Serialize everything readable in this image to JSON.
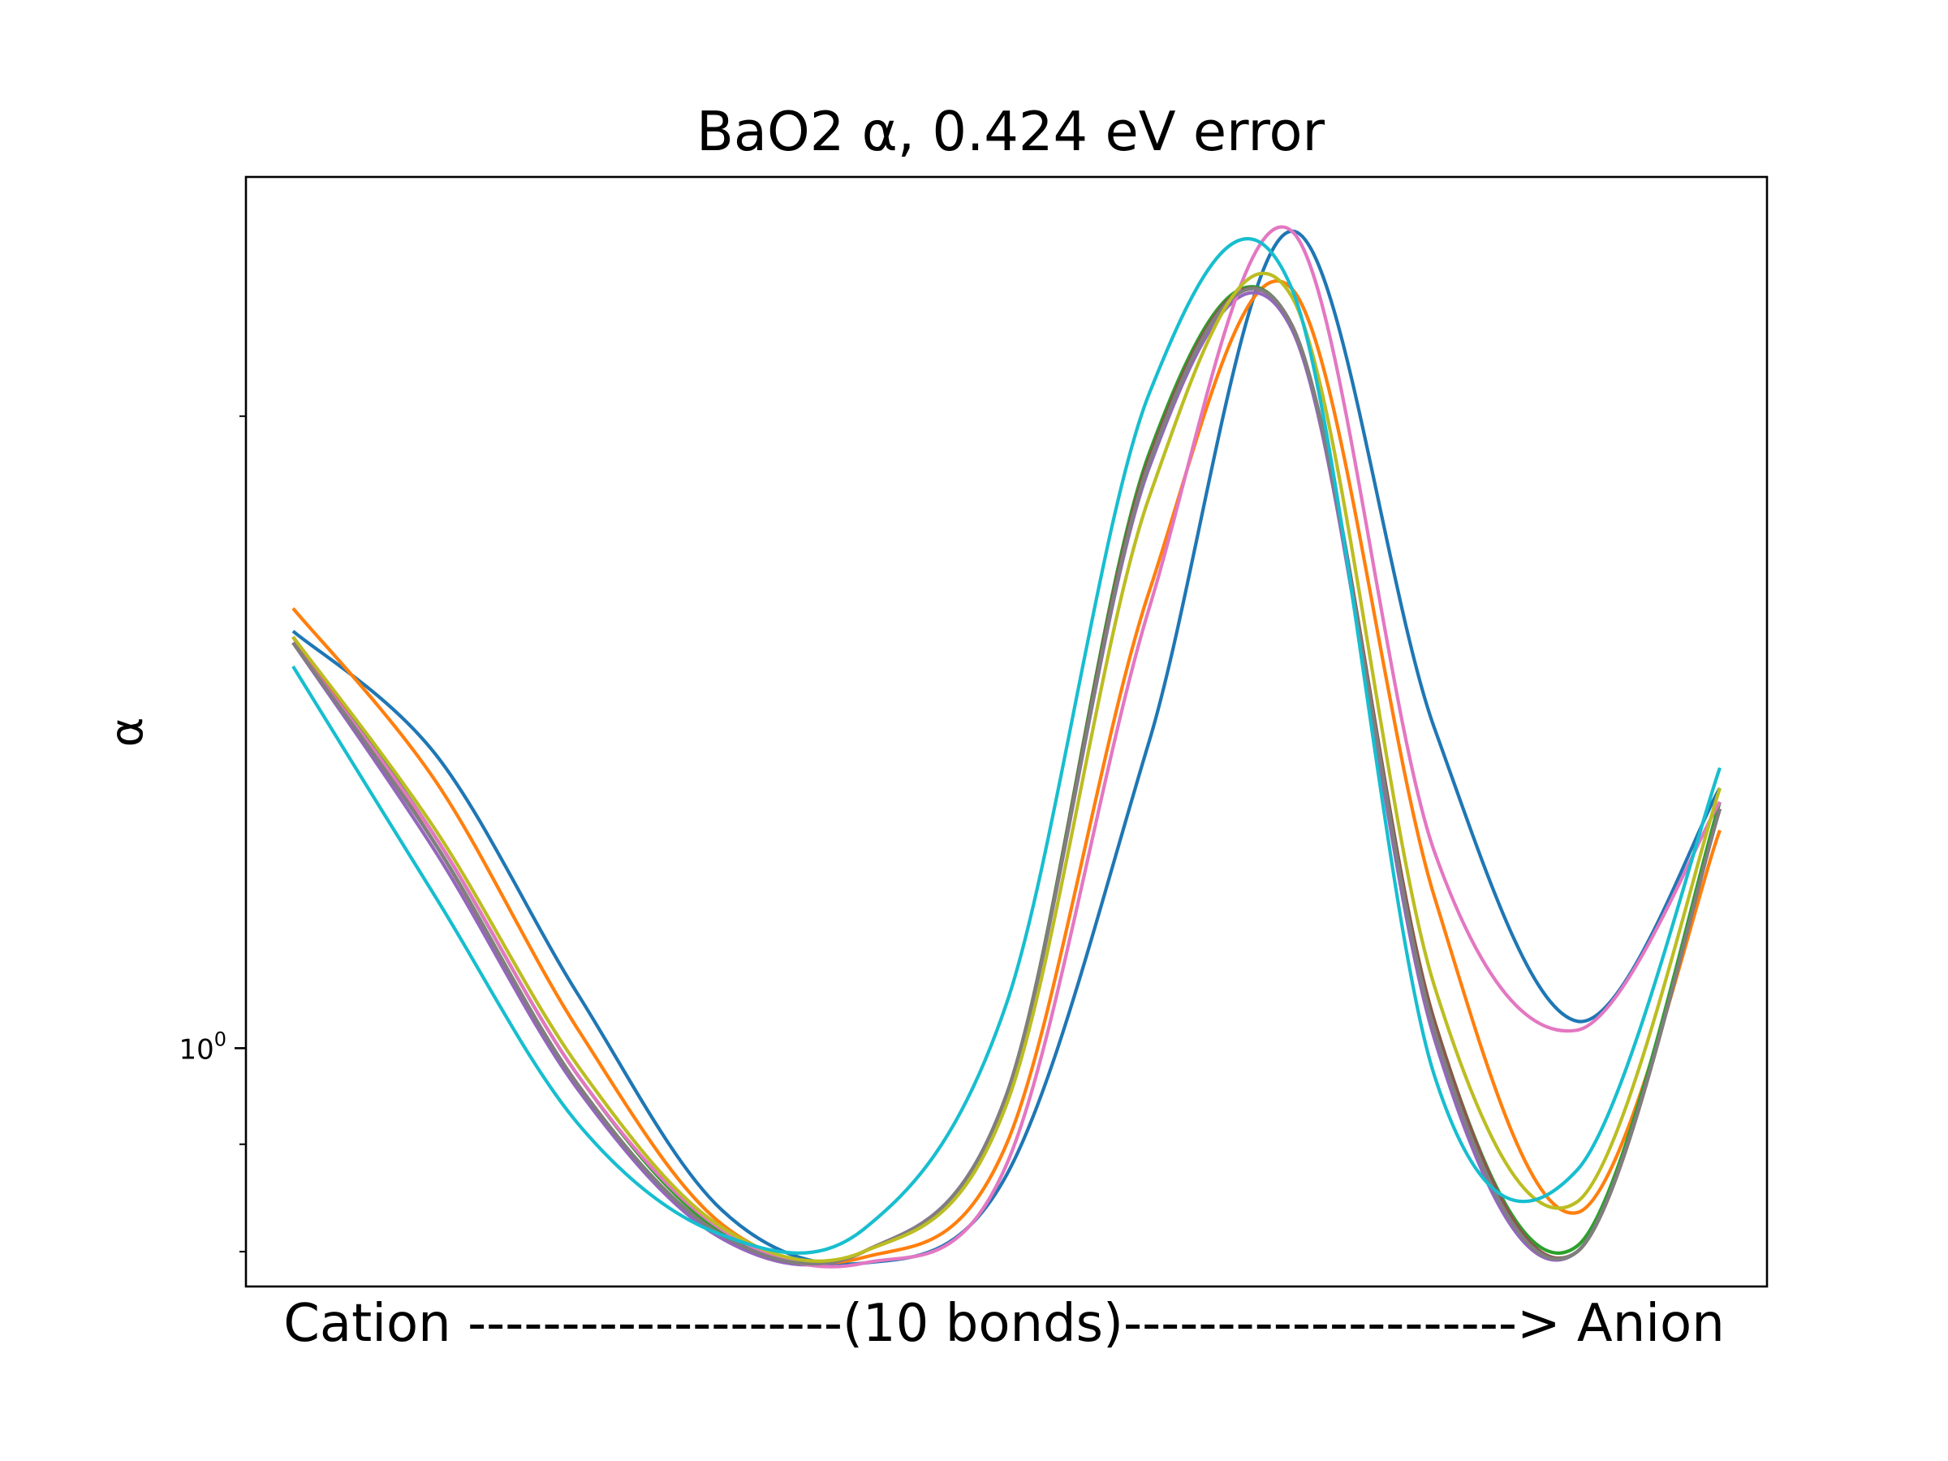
{
  "chart_data": {
    "type": "line",
    "title": "BaO2 α, 0.424 eV error",
    "xlabel": "Cation --------------------(10 bonds)---------------------> Anion",
    "ylabel": "α",
    "yscale": "log",
    "ylim": [
      0.77,
      2.6
    ],
    "xlim": [
      -3.3,
      103.3
    ],
    "x": [
      0,
      10,
      20,
      30,
      40,
      50,
      60,
      70,
      80,
      90,
      100
    ],
    "yticks": [
      {
        "base": "10",
        "exp": "0"
      }
    ],
    "grid": false,
    "legend": "none",
    "series": [
      {
        "color": "#1f77b4",
        "values": [
          1.58,
          1.38,
          1.06,
          0.838,
          0.79,
          0.87,
          1.4,
          2.45,
          1.42,
          1.03,
          1.33
        ]
      },
      {
        "color": "#ff7f0e",
        "values": [
          1.62,
          1.34,
          1.02,
          0.825,
          0.795,
          0.9,
          1.65,
          2.3,
          1.18,
          0.835,
          1.27
        ]
      },
      {
        "color": "#2ca02c",
        "values": [
          1.57,
          1.26,
          0.97,
          0.818,
          0.8,
          0.95,
          1.92,
          2.21,
          1.03,
          0.805,
          1.31
        ]
      },
      {
        "color": "#d62728",
        "values": [
          1.57,
          1.25,
          0.96,
          0.815,
          0.8,
          0.95,
          1.9,
          2.21,
          1.02,
          0.8,
          1.3
        ]
      },
      {
        "color": "#9467bd",
        "values": [
          1.56,
          1.24,
          0.955,
          0.812,
          0.8,
          0.95,
          1.89,
          2.2,
          1.01,
          0.8,
          1.3
        ]
      },
      {
        "color": "#8c564b",
        "values": [
          1.56,
          1.25,
          0.96,
          0.815,
          0.8,
          0.95,
          1.91,
          2.21,
          1.03,
          0.8,
          1.3
        ]
      },
      {
        "color": "#e377c2",
        "values": [
          1.56,
          1.26,
          0.97,
          0.82,
          0.79,
          0.88,
          1.62,
          2.45,
          1.24,
          1.02,
          1.31
        ]
      },
      {
        "color": "#7f7f7f",
        "values": [
          1.56,
          1.25,
          0.96,
          0.815,
          0.8,
          0.95,
          1.9,
          2.21,
          1.02,
          0.8,
          1.3
        ]
      },
      {
        "color": "#bcbd22",
        "values": [
          1.57,
          1.27,
          0.98,
          0.822,
          0.8,
          0.94,
          1.83,
          2.28,
          1.07,
          0.845,
          1.33
        ]
      },
      {
        "color": "#17becf",
        "values": [
          1.52,
          1.18,
          0.92,
          0.815,
          0.82,
          1.05,
          2.05,
          2.3,
          0.97,
          0.875,
          1.36
        ]
      }
    ]
  }
}
